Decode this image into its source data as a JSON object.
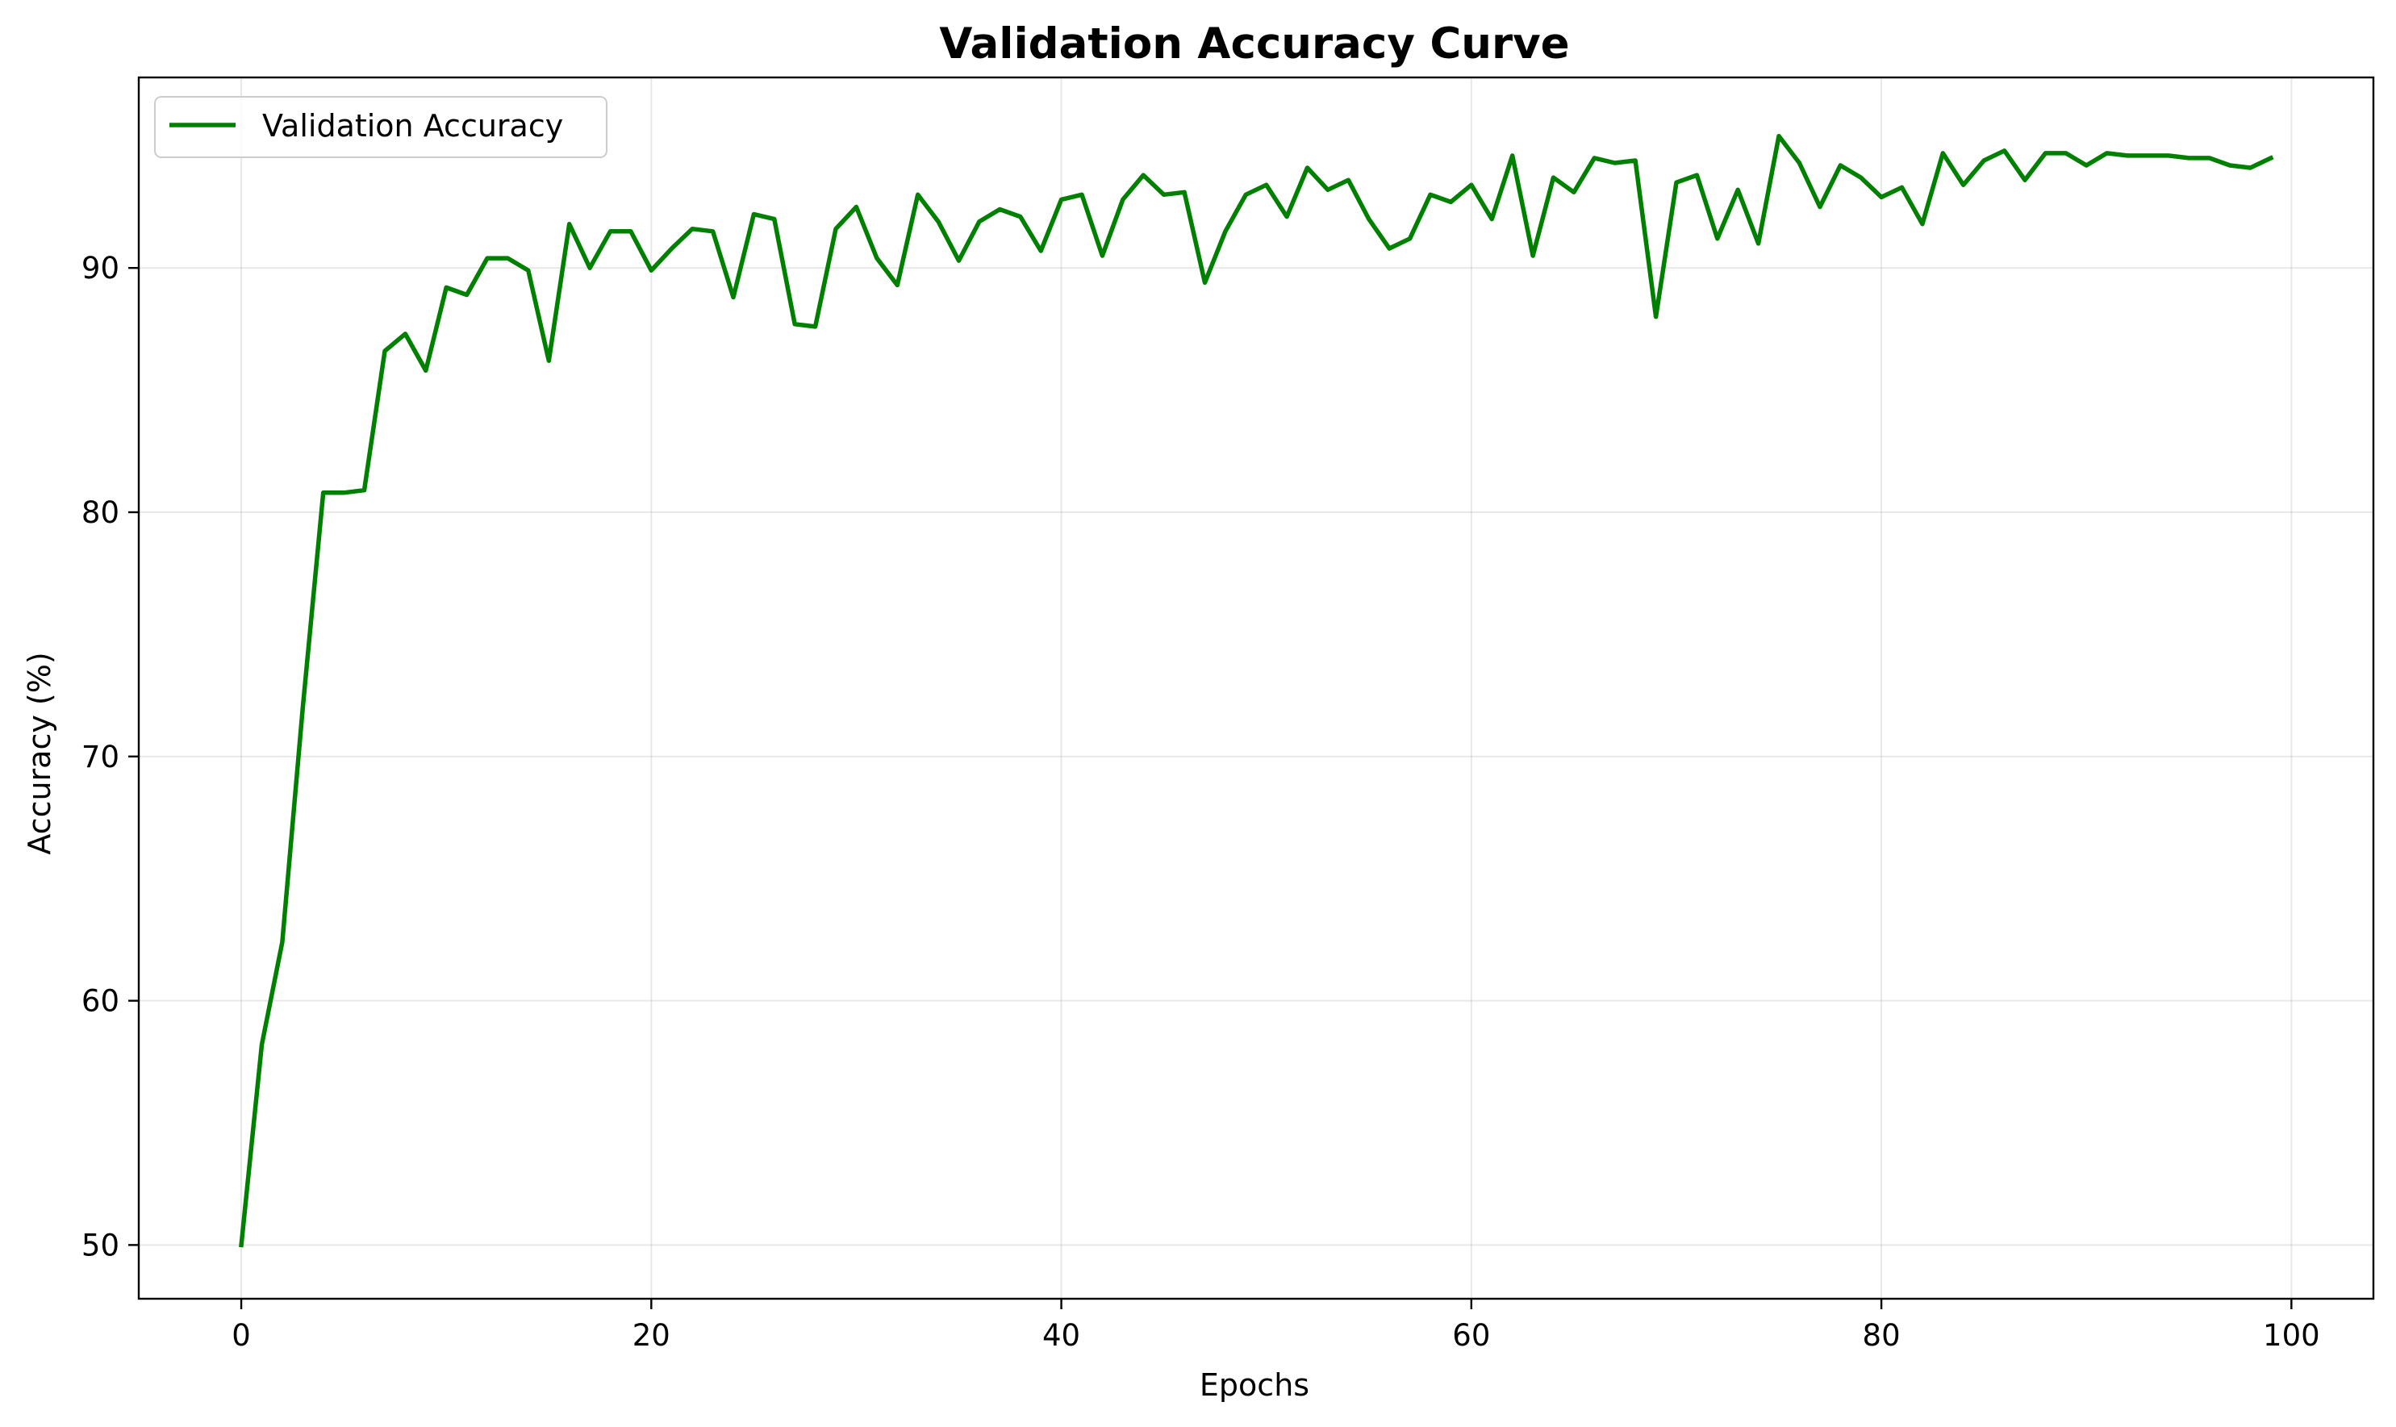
{
  "chart_data": {
    "type": "line",
    "title": "Validation Accuracy Curve",
    "xlabel": "Epochs",
    "ylabel": "Accuracy (%)",
    "xlim": [
      -5,
      104
    ],
    "ylim": [
      47.8,
      97.8
    ],
    "xticks": [
      0,
      20,
      40,
      60,
      80,
      100
    ],
    "yticks": [
      50,
      60,
      70,
      80,
      90
    ],
    "xtick_labels": [
      "0",
      "20",
      "40",
      "60",
      "80",
      "100"
    ],
    "ytick_labels": [
      "50",
      "60",
      "70",
      "80",
      "90"
    ],
    "grid": true,
    "legend_position": "upper-left",
    "series": [
      {
        "name": "Validation Accuracy",
        "color": "#008000",
        "x": [
          0,
          1,
          2,
          3,
          4,
          5,
          6,
          7,
          8,
          9,
          10,
          11,
          12,
          13,
          14,
          15,
          16,
          17,
          18,
          19,
          20,
          21,
          22,
          23,
          24,
          25,
          26,
          27,
          28,
          29,
          30,
          31,
          32,
          33,
          34,
          35,
          36,
          37,
          38,
          39,
          40,
          41,
          42,
          43,
          44,
          45,
          46,
          47,
          48,
          49,
          50,
          51,
          52,
          53,
          54,
          55,
          56,
          57,
          58,
          59,
          60,
          61,
          62,
          63,
          64,
          65,
          66,
          67,
          68,
          69,
          70,
          71,
          72,
          73,
          74,
          75,
          76,
          77,
          78,
          79,
          80,
          81,
          82,
          83,
          84,
          85,
          86,
          87,
          88,
          89,
          90,
          91,
          92,
          93,
          94,
          95,
          96,
          97,
          98,
          99
        ],
        "y": [
          50.0,
          58.2,
          62.4,
          72.0,
          80.8,
          80.8,
          80.9,
          86.6,
          87.3,
          85.8,
          89.2,
          88.9,
          90.4,
          90.4,
          89.9,
          86.2,
          91.8,
          90.0,
          91.5,
          91.5,
          89.9,
          90.8,
          91.6,
          91.5,
          88.8,
          92.2,
          92.0,
          87.7,
          87.6,
          91.6,
          92.5,
          90.4,
          89.3,
          93.0,
          91.9,
          90.3,
          91.9,
          92.4,
          92.1,
          90.7,
          92.8,
          93.0,
          90.5,
          92.8,
          93.8,
          93.0,
          93.1,
          89.4,
          91.5,
          93.0,
          93.4,
          92.1,
          94.1,
          93.2,
          93.6,
          92.0,
          90.8,
          91.2,
          93.0,
          92.7,
          93.4,
          92.0,
          94.6,
          90.5,
          93.7,
          93.1,
          94.5,
          94.3,
          94.4,
          88.0,
          93.5,
          93.8,
          91.2,
          93.2,
          91.0,
          95.4,
          94.3,
          92.5,
          94.2,
          93.7,
          92.9,
          93.3,
          91.8,
          94.7,
          93.4,
          94.4,
          94.8,
          93.6,
          94.7,
          94.7,
          94.2,
          94.7,
          94.6,
          94.6,
          94.6,
          94.5,
          94.5,
          94.2,
          94.1,
          94.5
        ]
      }
    ]
  }
}
